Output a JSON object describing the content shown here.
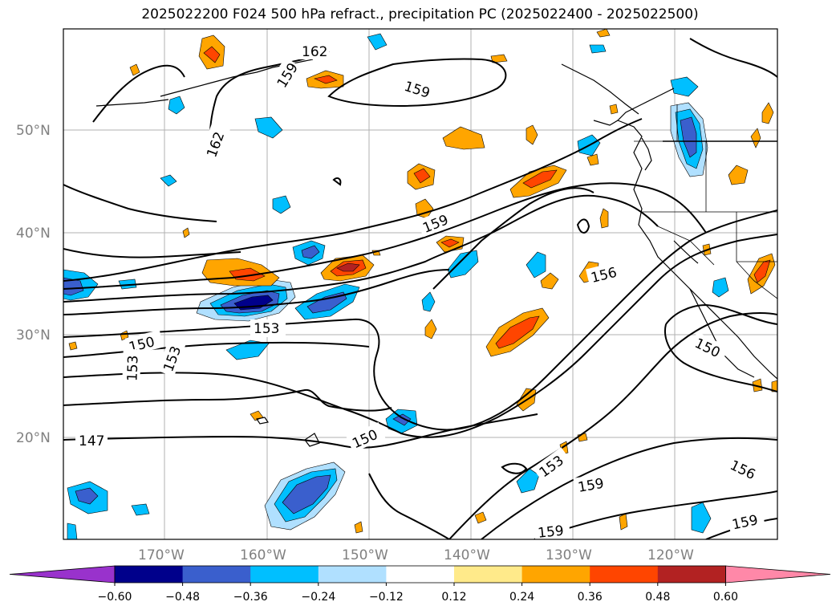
{
  "title": "2025022200 F024 500 hPa refract., precipitation PC (2025022400 - 2025022500)",
  "map": {
    "lon_labels": [
      "170°W",
      "160°W",
      "150°W",
      "140°W",
      "130°W",
      "120°W"
    ],
    "lat_labels": [
      "50°N",
      "40°N",
      "30°N",
      "20°N"
    ],
    "gridline_color": "#b0b0b0",
    "contour_labels": [
      "162",
      "159",
      "159",
      "162",
      "159",
      "156",
      "150",
      "153",
      "153",
      "153",
      "150",
      "147",
      "150",
      "153",
      "159",
      "159",
      "156",
      "159"
    ]
  },
  "colorbar": {
    "ticks": [
      "−0.60",
      "−0.48",
      "−0.36",
      "−0.24",
      "−0.12",
      "0.12",
      "0.24",
      "0.36",
      "0.48",
      "0.60"
    ],
    "colors": [
      "#9932cc",
      "#00008b",
      "#3a5fcd",
      "#00bfff",
      "#b0e0ff",
      "#ffffff",
      "#ffea8a",
      "#ffa500",
      "#ff4500",
      "#b22222",
      "#ff88a8"
    ]
  },
  "legend_colors": {
    "land_outline": "#000000",
    "contour": "#000000"
  }
}
